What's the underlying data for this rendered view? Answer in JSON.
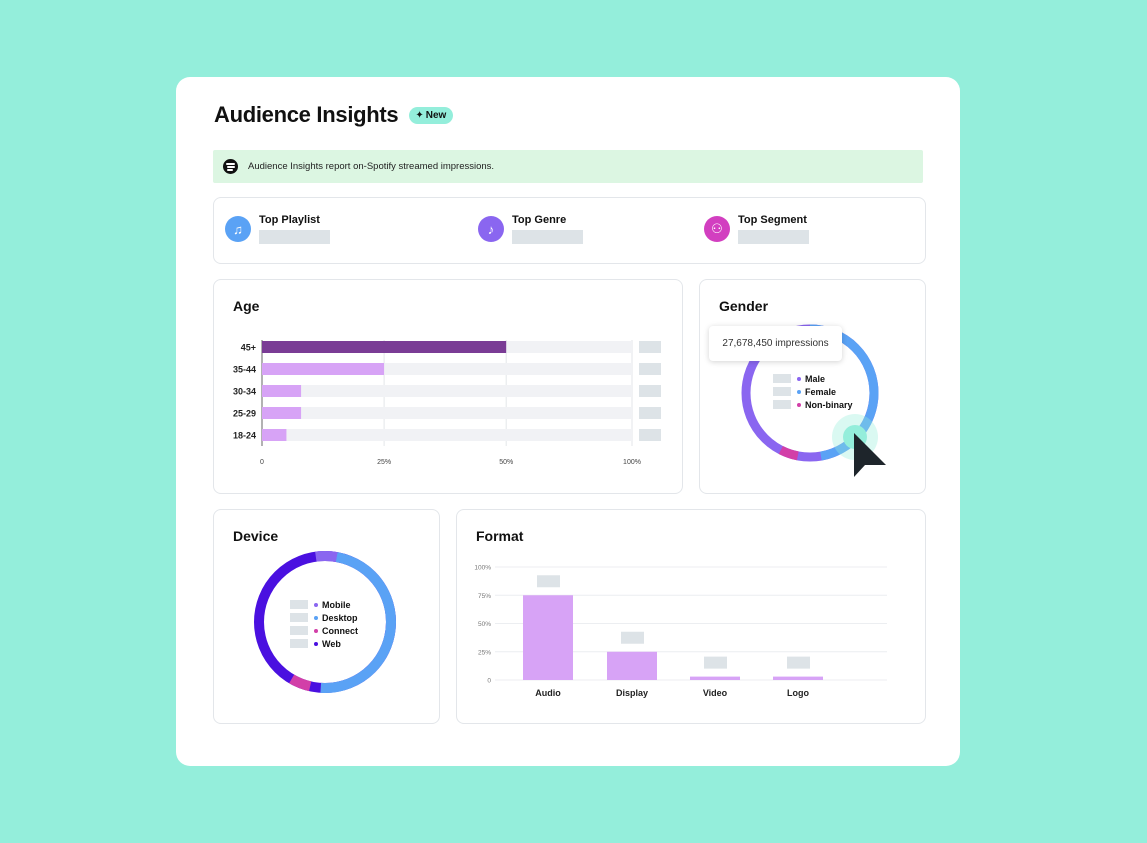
{
  "header": {
    "title": "Audience Insights",
    "badge": "New"
  },
  "banner": {
    "text": "Audience Insights report on-Spotify streamed impressions."
  },
  "top_stats": [
    {
      "label": "Top Playlist",
      "icon": "music-note-icon",
      "color": "#5aa2f5"
    },
    {
      "label": "Top Genre",
      "icon": "genre-icon",
      "color": "#8a66f0"
    },
    {
      "label": "Top Segment",
      "icon": "segment-icon",
      "color": "#d23fc0"
    }
  ],
  "age": {
    "title": "Age",
    "ticks": [
      "0",
      "25%",
      "50%",
      "100%"
    ],
    "rows": [
      {
        "label": "45+",
        "value": 0.5,
        "color": "#7a3c95"
      },
      {
        "label": "35-44",
        "value": 0.25,
        "color": "#d7a3f6"
      },
      {
        "label": "30-34",
        "value": 0.08,
        "color": "#d7a3f6"
      },
      {
        "label": "25-29",
        "value": 0.08,
        "color": "#d7a3f6"
      },
      {
        "label": "18-24",
        "value": 0.05,
        "color": "#d7a3f6"
      }
    ]
  },
  "gender": {
    "title": "Gender",
    "legend": [
      {
        "label": "Male",
        "color": "#8a66f0"
      },
      {
        "label": "Female",
        "color": "#5aa2f5"
      },
      {
        "label": "Non-binary",
        "color": "#d23fa8"
      }
    ],
    "tooltip": "27,678,450 impressions"
  },
  "device": {
    "title": "Device",
    "legend": [
      {
        "label": "Mobile",
        "color": "#8a66f0"
      },
      {
        "label": "Desktop",
        "color": "#5aa2f5"
      },
      {
        "label": "Connect",
        "color": "#d23fa8"
      },
      {
        "label": "Web",
        "color": "#4a10e0"
      }
    ]
  },
  "format": {
    "title": "Format",
    "ticks": [
      "0",
      "25%",
      "50%",
      "75%",
      "100%"
    ],
    "bars": [
      {
        "label": "Audio",
        "value": 0.75
      },
      {
        "label": "Display",
        "value": 0.25
      },
      {
        "label": "Video",
        "value": 0.03
      },
      {
        "label": "Logo",
        "value": 0.03
      }
    ],
    "bar_color": "#d7a3f6"
  }
}
